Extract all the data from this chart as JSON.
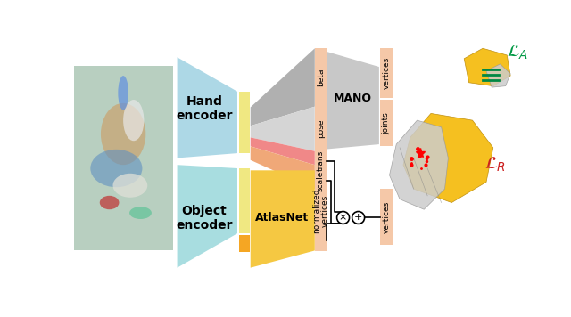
{
  "bg_color": "#ffffff",
  "hand_enc_color": "#add8e6",
  "obj_enc_color": "#a8dde0",
  "yellow_bar": "#f0e882",
  "orange_bar": "#f5a623",
  "pink_label": "#f5c8a8",
  "gray_dark": "#b0b0b0",
  "gray_light": "#d5d5d5",
  "red_trap": "#f08888",
  "orange_trap": "#f0a878",
  "mano_gray": "#c8c8c8",
  "atlas_yellow": "#f5c842",
  "hand_text": "Hand\nencoder",
  "obj_text": "Object\nencoder",
  "mano_text": "MANO",
  "atlas_text": "AtlasNet",
  "beta_text": "beta",
  "pose_text": "pose",
  "trans_text": "trans",
  "scale_text": "scale",
  "verts_top": "vertices",
  "joints_text": "joints",
  "norm_verts": "normalized\nvertices",
  "verts_bot": "vertices"
}
